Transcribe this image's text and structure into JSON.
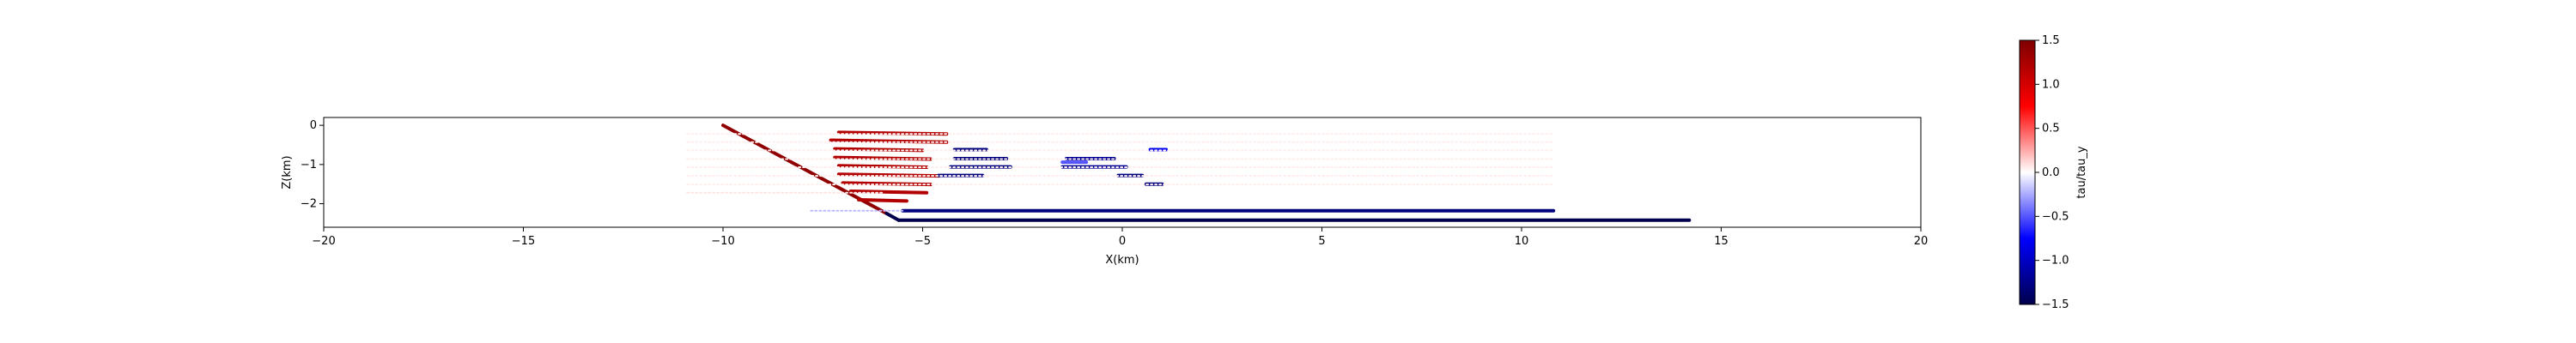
{
  "chart_data": {
    "type": "scatter",
    "title": "",
    "xlabel": "X(km)",
    "ylabel": "Z(km)",
    "xlim": [
      -20,
      20
    ],
    "ylim": [
      -2.6,
      0.2
    ],
    "xticks": [
      -20,
      -15,
      -10,
      -5,
      0,
      5,
      10,
      15,
      20
    ],
    "xtick_labels": [
      "−20",
      "−15",
      "−10",
      "−5",
      "0",
      "5",
      "10",
      "15",
      "20"
    ],
    "yticks": [
      0,
      -1,
      -2
    ],
    "ytick_labels": [
      "0",
      "−1",
      "−2"
    ],
    "grid": false,
    "legend": "none",
    "colormap": "seismic",
    "colorbar": {
      "label": "tau/tau_y",
      "vmin": -1.5,
      "vmax": 1.5,
      "ticks": [
        1.5,
        1.0,
        0.5,
        0.0,
        -0.5,
        -1.0,
        -1.5
      ],
      "tick_labels": [
        "1.5",
        "1.0",
        "0.5",
        "0.0",
        "−0.5",
        "−1.0",
        "−1.5"
      ],
      "stops": [
        "#00004c",
        "#0000ff",
        "#ffffff",
        "#ff0000",
        "#7f0000"
      ]
    },
    "segments": [
      {
        "name": "main-fault",
        "x0": -10.0,
        "y0": 0.0,
        "x1": -5.9,
        "y1": -2.25,
        "value": 1.4
      },
      {
        "name": "main-fault-bend",
        "x0": -5.9,
        "y0": -2.25,
        "x1": -5.6,
        "y1": -2.42,
        "value": -1.5
      },
      {
        "name": "main-fault-floor",
        "x0": -5.6,
        "y0": -2.42,
        "x1": 14.2,
        "y1": -2.42,
        "value": -1.5
      },
      {
        "name": "flat-upper",
        "x0": -5.5,
        "y0": -2.18,
        "x1": 10.8,
        "y1": -2.18,
        "value": -1.3
      },
      {
        "name": "flat-upper-faint",
        "x0": -7.8,
        "y0": -2.18,
        "x1": -5.5,
        "y1": -2.18,
        "value": -0.2
      },
      {
        "name": "red-1",
        "x0": -7.1,
        "y0": -0.18,
        "x1": -4.4,
        "y1": -0.22,
        "value": 1.2
      },
      {
        "name": "red-2",
        "x0": -7.3,
        "y0": -0.38,
        "x1": -4.4,
        "y1": -0.43,
        "value": 1.2
      },
      {
        "name": "red-3",
        "x0": -7.2,
        "y0": -0.6,
        "x1": -5.0,
        "y1": -0.64,
        "value": 1.2
      },
      {
        "name": "red-4",
        "x0": -7.2,
        "y0": -0.82,
        "x1": -4.8,
        "y1": -0.86,
        "value": 1.2
      },
      {
        "name": "red-5",
        "x0": -7.1,
        "y0": -1.03,
        "x1": -4.9,
        "y1": -1.07,
        "value": 1.2
      },
      {
        "name": "red-6",
        "x0": -7.1,
        "y0": -1.25,
        "x1": -4.6,
        "y1": -1.29,
        "value": 1.2
      },
      {
        "name": "red-7",
        "x0": -7.0,
        "y0": -1.47,
        "x1": -4.8,
        "y1": -1.51,
        "value": 1.2
      },
      {
        "name": "red-8",
        "x0": -6.8,
        "y0": -1.68,
        "x1": -4.9,
        "y1": -1.72,
        "value": 1.2
      },
      {
        "name": "red-9",
        "x0": -6.6,
        "y0": -1.9,
        "x1": -5.4,
        "y1": -1.93,
        "value": 1.2
      },
      {
        "name": "blue-1",
        "x0": -4.2,
        "y0": -0.62,
        "x1": -3.4,
        "y1": -0.62,
        "value": -1.3
      },
      {
        "name": "blue-2",
        "x0": -4.2,
        "y0": -0.85,
        "x1": -2.9,
        "y1": -0.85,
        "value": -1.3
      },
      {
        "name": "blue-3",
        "x0": -4.3,
        "y0": -1.06,
        "x1": -2.8,
        "y1": -1.06,
        "value": -1.3
      },
      {
        "name": "blue-4",
        "x0": -4.6,
        "y0": -1.28,
        "x1": -3.5,
        "y1": -1.28,
        "value": -1.3
      },
      {
        "name": "blue-5",
        "x0": -1.4,
        "y0": -0.85,
        "x1": -0.2,
        "y1": -0.85,
        "value": -1.2
      },
      {
        "name": "blue-5b",
        "x0": -1.5,
        "y0": -0.94,
        "x1": -0.9,
        "y1": -0.94,
        "value": -0.5
      },
      {
        "name": "blue-6",
        "x0": -1.5,
        "y0": -1.06,
        "x1": 0.1,
        "y1": -1.06,
        "value": -1.2
      },
      {
        "name": "blue-7",
        "x0": -0.1,
        "y0": -1.28,
        "x1": 0.5,
        "y1": -1.28,
        "value": -1.3
      },
      {
        "name": "blue-8",
        "x0": 0.6,
        "y0": -1.5,
        "x1": 1.0,
        "y1": -1.5,
        "value": -1.3
      },
      {
        "name": "blue-9",
        "x0": 0.7,
        "y0": -0.62,
        "x1": 1.1,
        "y1": -0.62,
        "value": -0.8
      },
      {
        "name": "faint-1",
        "x0": -10.9,
        "y0": -0.22,
        "x1": 10.8,
        "y1": -0.22,
        "value": 0.05
      },
      {
        "name": "faint-2",
        "x0": -10.9,
        "y0": -0.43,
        "x1": 10.8,
        "y1": -0.43,
        "value": 0.05
      },
      {
        "name": "faint-3",
        "x0": -10.9,
        "y0": -0.64,
        "x1": 10.8,
        "y1": -0.64,
        "value": 0.05
      },
      {
        "name": "faint-4",
        "x0": -10.9,
        "y0": -0.86,
        "x1": 10.8,
        "y1": -0.86,
        "value": 0.05
      },
      {
        "name": "faint-5",
        "x0": -10.9,
        "y0": -1.07,
        "x1": 10.8,
        "y1": -1.07,
        "value": 0.05
      },
      {
        "name": "faint-6",
        "x0": -10.9,
        "y0": -1.29,
        "x1": 10.8,
        "y1": -1.29,
        "value": 0.05
      },
      {
        "name": "faint-7",
        "x0": -10.9,
        "y0": -1.51,
        "x1": 10.8,
        "y1": -1.51,
        "value": 0.05
      },
      {
        "name": "faint-8",
        "x0": -10.9,
        "y0": -1.72,
        "x1": -6.0,
        "y1": -1.72,
        "value": 0.08
      }
    ]
  }
}
